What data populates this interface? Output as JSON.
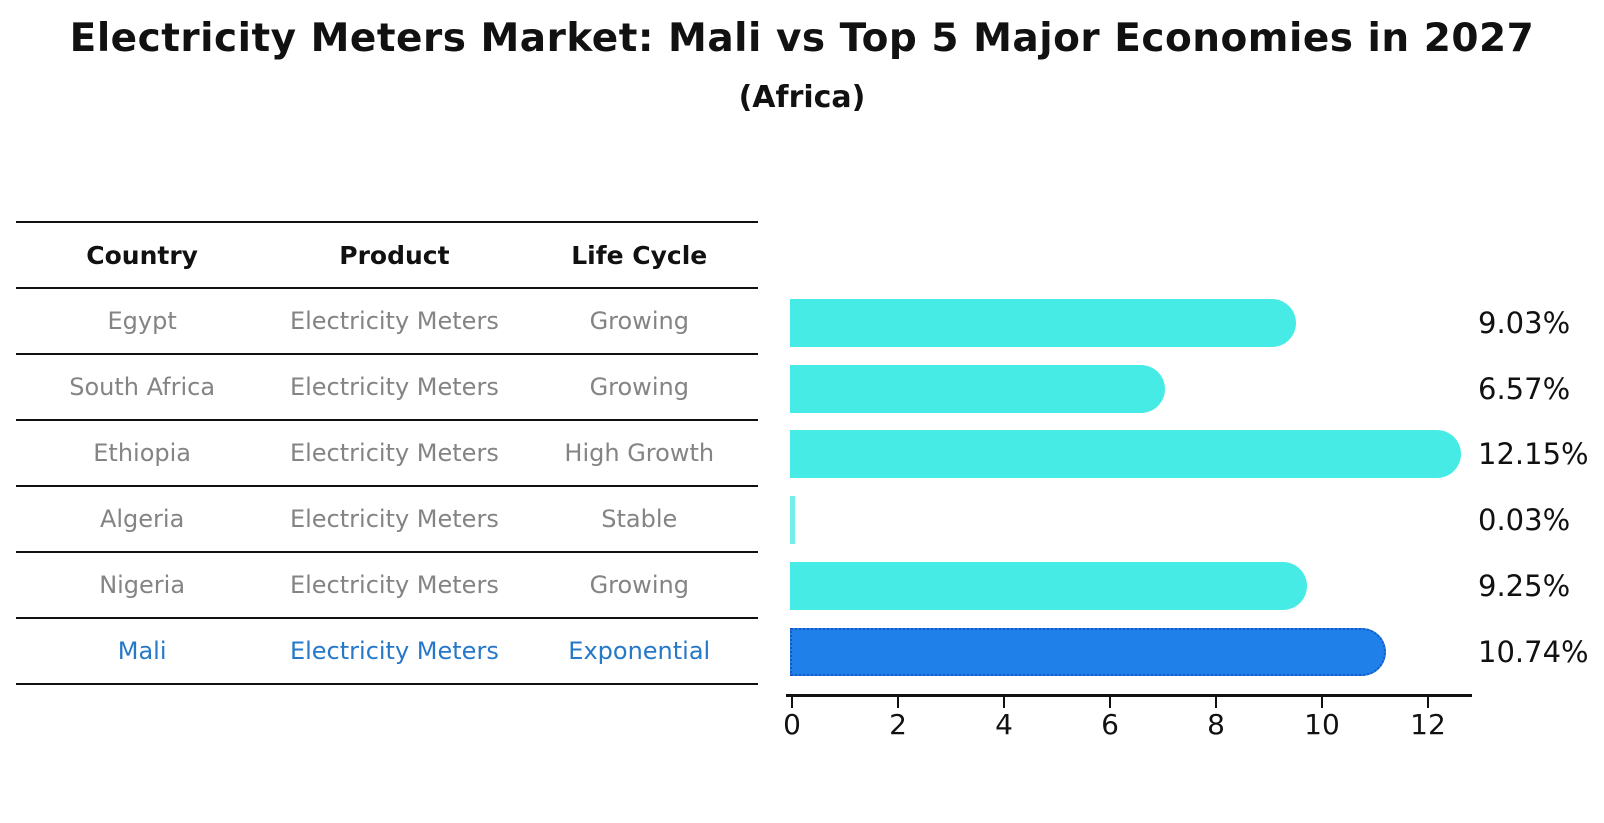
{
  "title": "Electricity Meters Market: Mali vs Top 5 Major Economies in 2027",
  "subtitle": "(Africa)",
  "table": {
    "headers": [
      "Country",
      "Product",
      "Life Cycle"
    ],
    "rows": [
      {
        "country": "Egypt",
        "product": "Electricity Meters",
        "life_cycle": "Growing",
        "highlight": false
      },
      {
        "country": "South Africa",
        "product": "Electricity Meters",
        "life_cycle": "Growing",
        "highlight": false
      },
      {
        "country": "Ethiopia",
        "product": "Electricity Meters",
        "life_cycle": "High Growth",
        "highlight": false
      },
      {
        "country": "Algeria",
        "product": "Electricity Meters",
        "life_cycle": "Stable",
        "highlight": false
      },
      {
        "country": "Nigeria",
        "product": "Electricity Meters",
        "life_cycle": "Growing",
        "highlight": false
      },
      {
        "country": "Mali",
        "product": "Electricity Meters",
        "life_cycle": "Exponential",
        "highlight": true
      }
    ]
  },
  "chart_data": {
    "type": "bar",
    "orientation": "horizontal",
    "categories": [
      "Egypt",
      "South Africa",
      "Ethiopia",
      "Algeria",
      "Nigeria",
      "Mali"
    ],
    "values": [
      9.03,
      6.57,
      12.15,
      0.03,
      9.25,
      10.74
    ],
    "value_labels": [
      "9.03%",
      "6.57%",
      "12.15%",
      "0.03%",
      "9.25%",
      "10.74%"
    ],
    "x_ticks": [
      0,
      2,
      4,
      6,
      8,
      10,
      12
    ],
    "xlim": [
      0,
      12.9
    ],
    "grid": false,
    "legend": "none",
    "highlight_index": 5,
    "bar_color": "#46EBE6",
    "highlight_bar_color": "#1E80E8",
    "highlight_border_color": "#1559C8",
    "highlight_text_color": "#2678C8",
    "axis_color": "#111111",
    "table_text_color": "#848484"
  }
}
